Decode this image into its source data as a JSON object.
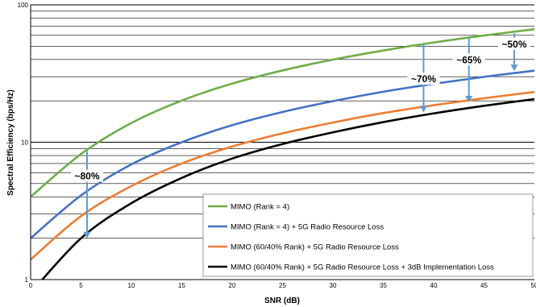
{
  "chart_data": {
    "type": "line",
    "xlabel": "SNR (dB)",
    "ylabel": "Spectral Efficiency (bps/Hz)",
    "xlim": [
      0,
      50
    ],
    "ylim": [
      1,
      100
    ],
    "y_scale": "log",
    "grid": "horizontal",
    "x_ticks": [
      "0",
      "5",
      "10",
      "15",
      "20",
      "25",
      "30",
      "35",
      "40",
      "45",
      "50"
    ],
    "y_ticks": [
      "1",
      "10",
      "100"
    ],
    "x": [
      0,
      5,
      10,
      15,
      20,
      25,
      30,
      35,
      40,
      45,
      50
    ],
    "series": [
      {
        "name": "MIMO (Rank = 4)",
        "color": "#70ad47",
        "values": [
          4.0,
          8.2,
          13.8,
          20.1,
          26.7,
          33.3,
          39.9,
          46.5,
          53.2,
          59.8,
          66.4
        ]
      },
      {
        "name": "MIMO (Rank = 4) + 5G Radio Resource Loss",
        "color": "#4472c4",
        "values": [
          2.0,
          4.1,
          6.9,
          10.0,
          13.3,
          16.6,
          19.9,
          23.3,
          26.6,
          29.9,
          33.2
        ]
      },
      {
        "name": "MIMO (60/40% Rank) + 5G Radio Resource Loss",
        "color": "#ed7d31",
        "values": [
          1.4,
          2.9,
          4.8,
          7.0,
          9.3,
          11.6,
          13.9,
          16.3,
          18.6,
          20.9,
          23.2
        ]
      },
      {
        "name": "MIMO (60/40% Rank) + 5G Radio Resource Loss + 3dB Implementation Loss",
        "color": "#000000",
        "values": [
          0.8,
          2.0,
          3.6,
          5.5,
          7.6,
          9.7,
          11.8,
          14.0,
          16.2,
          18.4,
          20.6
        ]
      }
    ],
    "annotations": [
      {
        "label": "~80%",
        "x": 5.6,
        "y_from": 8.6,
        "y_to": 2.0,
        "label_y": 5.7
      },
      {
        "label": "~70%",
        "x": 39.0,
        "y_from": 52.0,
        "y_to": 16.5,
        "label_y": 29.0
      },
      {
        "label": "~65%",
        "x": 43.5,
        "y_from": 58.0,
        "y_to": 19.5,
        "label_y": 40.0
      },
      {
        "label": "~50%",
        "x": 48.0,
        "y_from": 62.0,
        "y_to": 33.0,
        "label_y": 52.0
      }
    ],
    "annotation_color": "#5b9bd5",
    "legend_position": "bottom-right"
  }
}
